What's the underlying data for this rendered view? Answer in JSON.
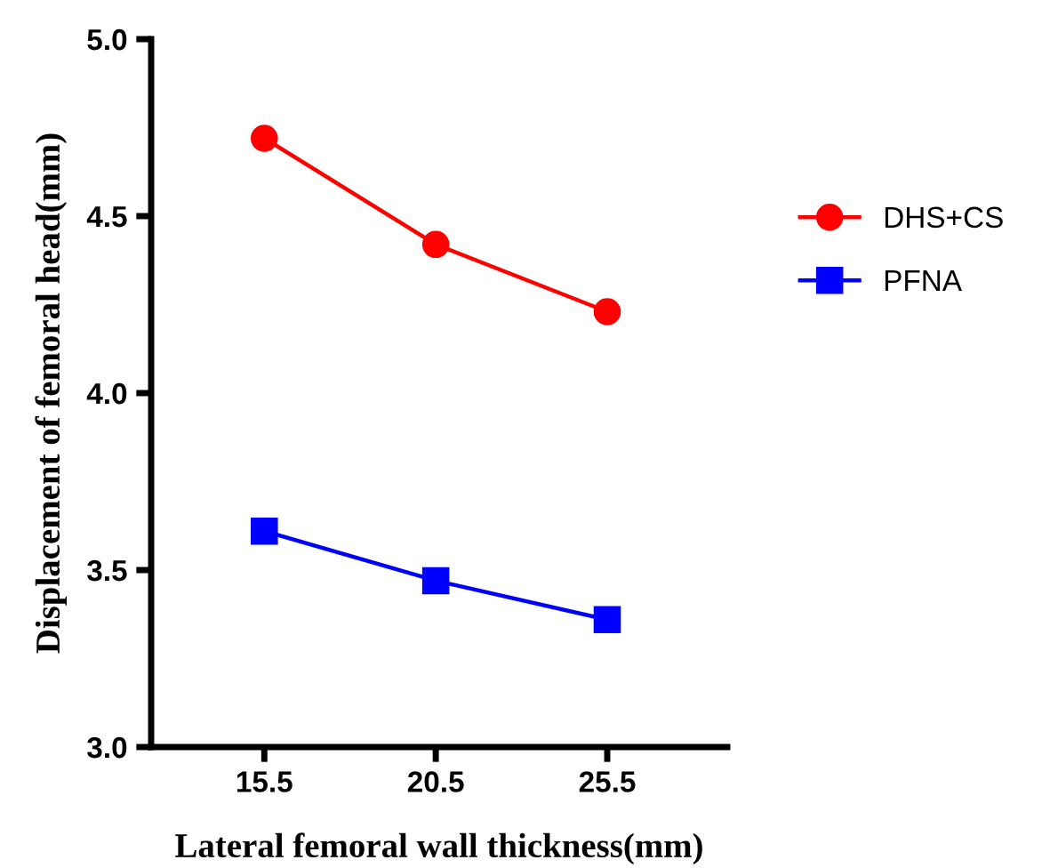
{
  "chart_data": {
    "type": "line",
    "xlabel": "Lateral femoral wall thickness(mm)",
    "ylabel": "Displacement of femoral head(mm)",
    "x": [
      15.5,
      20.5,
      25.5
    ],
    "xlim": [
      12.2,
      29.0
    ],
    "xticks": [
      15.5,
      20.5,
      25.5
    ],
    "ylim": [
      3.0,
      5.0
    ],
    "yticks": [
      {
        "value": 3,
        "label": "3.0"
      },
      3.5,
      {
        "value": 4,
        "label": "4.0"
      },
      4.5,
      {
        "value": 5,
        "label": "5.0"
      }
    ],
    "grid": false,
    "legend": "right",
    "series": [
      {
        "name": "DHS+CS",
        "color": "#ff0000",
        "marker": "circle",
        "values": [
          4.72,
          4.42,
          4.23
        ]
      },
      {
        "name": "PFNA",
        "color": "#0000ff",
        "marker": "square",
        "values": [
          3.61,
          3.47,
          3.36
        ]
      }
    ]
  }
}
